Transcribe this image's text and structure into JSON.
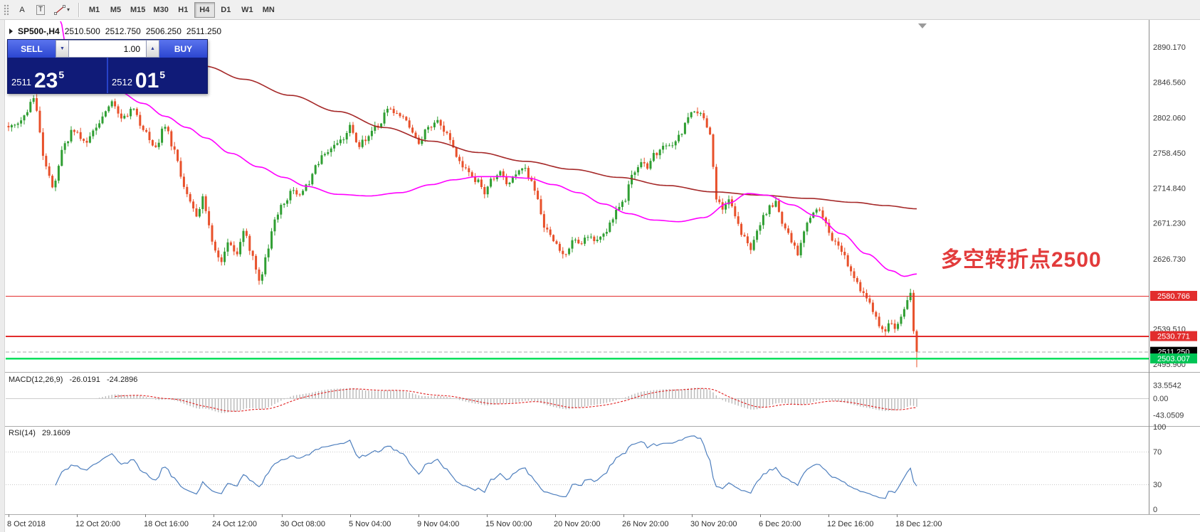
{
  "toolbar": {
    "tools": [
      {
        "name": "cursor-tool",
        "label": "A"
      },
      {
        "name": "text-tool",
        "label": "T"
      }
    ],
    "shapes_caret": "▾",
    "timeframes": [
      "M1",
      "M5",
      "M15",
      "M30",
      "H1",
      "H4",
      "D1",
      "W1",
      "MN"
    ],
    "active_timeframe": "H4"
  },
  "chart": {
    "symbol_title": "SP500-,H4",
    "ohlc": {
      "open": "2510.500",
      "high": "2512.750",
      "low": "2506.250",
      "close": "2511.250"
    },
    "annotation": {
      "text": "多空转折点2500",
      "color": "#e23b3b"
    }
  },
  "trade_panel": {
    "sell_label": "SELL",
    "buy_label": "BUY",
    "volume": "1.00",
    "volume_down_icon": "▼",
    "volume_up_icon": "▲",
    "sell_price": {
      "big_figure": "2511",
      "pips": "23",
      "pipette": "5"
    },
    "buy_price": {
      "big_figure": "2512",
      "pips": "01",
      "pipette": "5"
    }
  },
  "price_axis": {
    "labels": [
      {
        "text": "2890.170",
        "price": 2890.17
      },
      {
        "text": "2846.560",
        "price": 2846.56
      },
      {
        "text": "2802.060",
        "price": 2802.06
      },
      {
        "text": "2758.450",
        "price": 2758.45
      },
      {
        "text": "2714.840",
        "price": 2714.84
      },
      {
        "text": "2671.230",
        "price": 2671.23
      },
      {
        "text": "2626.730",
        "price": 2626.73
      },
      {
        "text": "2539.510",
        "price": 2539.51
      },
      {
        "text": "2495.900",
        "price": 2495.9
      }
    ],
    "badges": [
      {
        "text": "2580.766",
        "price": 2580.766,
        "bg": "#e22d2d",
        "fg": "#ffffff",
        "role": "resistance-line"
      },
      {
        "text": "2530.771",
        "price": 2530.771,
        "bg": "#e22d2d",
        "fg": "#ffffff",
        "role": "resistance-line"
      },
      {
        "text": "2511.250",
        "price": 2511.25,
        "bg": "#000000",
        "fg": "#ffffff",
        "role": "current-price"
      },
      {
        "text": "2503.007",
        "price": 2503.007,
        "bg": "#00c455",
        "fg": "#ffffff",
        "role": "support-line"
      }
    ]
  },
  "macd": {
    "title": "MACD(12,26,9)",
    "value_main": "-26.0191",
    "value_signal": "-24.2896",
    "axis": [
      {
        "text": "33.5542",
        "value": 33.5542
      },
      {
        "text": "0.00",
        "value": 0
      },
      {
        "text": "-43.0509",
        "value": -43.0509
      }
    ],
    "fast": 12,
    "slow": 26,
    "signal": 9,
    "histogram_color": "#b9b9b9",
    "signal_color": "#e02020"
  },
  "rsi": {
    "title": "RSI(14)",
    "value": "29.1609",
    "period": 14,
    "axis": [
      {
        "text": "100",
        "value": 100
      },
      {
        "text": "70",
        "value": 70
      },
      {
        "text": "30",
        "value": 30
      },
      {
        "text": "0",
        "value": 0
      }
    ],
    "levels": [
      70,
      30
    ],
    "line_color": "#4e7fbe"
  },
  "time_axis": {
    "labels": [
      "8 Oct 2018",
      "12 Oct 20:00",
      "18 Oct 16:00",
      "24 Oct 12:00",
      "30 Oct 08:00",
      "5 Nov 04:00",
      "9 Nov 04:00",
      "15 Nov 00:00",
      "20 Nov 20:00",
      "26 Nov 20:00",
      "30 Nov 20:00",
      "6 Dec 20:00",
      "12 Dec 16:00",
      "18 Dec 12:00"
    ]
  },
  "chart_data": {
    "type": "candlestick",
    "symbol": "SP500-",
    "timeframe": "H4",
    "bars": 291,
    "visible_price_range": [
      2486,
      2921
    ],
    "up_color": "#2f9e32",
    "down_color": "#e8502a",
    "last_close": 2511.25,
    "price_waypoints": [
      [
        0,
        2788
      ],
      [
        4,
        2800
      ],
      [
        8,
        2825
      ],
      [
        12,
        2745
      ],
      [
        14,
        2716
      ],
      [
        18,
        2770
      ],
      [
        21,
        2788
      ],
      [
        24,
        2772
      ],
      [
        28,
        2790
      ],
      [
        31,
        2812
      ],
      [
        33,
        2822
      ],
      [
        36,
        2800
      ],
      [
        40,
        2815
      ],
      [
        43,
        2785
      ],
      [
        47,
        2768
      ],
      [
        50,
        2792
      ],
      [
        53,
        2762
      ],
      [
        56,
        2715
      ],
      [
        58,
        2700
      ],
      [
        60,
        2678
      ],
      [
        62,
        2706
      ],
      [
        63,
        2688
      ],
      [
        65,
        2645
      ],
      [
        68,
        2620
      ],
      [
        70,
        2650
      ],
      [
        73,
        2634
      ],
      [
        75,
        2660
      ],
      [
        78,
        2630
      ],
      [
        80,
        2598
      ],
      [
        83,
        2640
      ],
      [
        85,
        2676
      ],
      [
        88,
        2698
      ],
      [
        91,
        2714
      ],
      [
        93,
        2704
      ],
      [
        96,
        2722
      ],
      [
        98,
        2742
      ],
      [
        101,
        2756
      ],
      [
        104,
        2768
      ],
      [
        107,
        2778
      ],
      [
        109,
        2790
      ],
      [
        112,
        2768
      ],
      [
        114,
        2776
      ],
      [
        118,
        2792
      ],
      [
        121,
        2812
      ],
      [
        124,
        2809
      ],
      [
        126,
        2800
      ],
      [
        129,
        2782
      ],
      [
        131,
        2772
      ],
      [
        134,
        2790
      ],
      [
        137,
        2796
      ],
      [
        140,
        2780
      ],
      [
        142,
        2762
      ],
      [
        145,
        2742
      ],
      [
        147,
        2732
      ],
      [
        150,
        2722
      ],
      [
        152,
        2706
      ],
      [
        154,
        2726
      ],
      [
        157,
        2736
      ],
      [
        159,
        2720
      ],
      [
        162,
        2730
      ],
      [
        164,
        2742
      ],
      [
        167,
        2722
      ],
      [
        169,
        2700
      ],
      [
        171,
        2665
      ],
      [
        174,
        2652
      ],
      [
        176,
        2640
      ],
      [
        178,
        2630
      ],
      [
        180,
        2652
      ],
      [
        182,
        2644
      ],
      [
        185,
        2656
      ],
      [
        187,
        2646
      ],
      [
        190,
        2656
      ],
      [
        192,
        2670
      ],
      [
        195,
        2690
      ],
      [
        197,
        2702
      ],
      [
        199,
        2730
      ],
      [
        202,
        2746
      ],
      [
        204,
        2740
      ],
      [
        206,
        2760
      ],
      [
        207,
        2754
      ],
      [
        209,
        2770
      ],
      [
        212,
        2766
      ],
      [
        214,
        2780
      ],
      [
        217,
        2800
      ],
      [
        219,
        2812
      ],
      [
        221,
        2806
      ],
      [
        223,
        2790
      ],
      [
        224,
        2782
      ],
      [
        226,
        2700
      ],
      [
        228,
        2690
      ],
      [
        230,
        2702
      ],
      [
        232,
        2678
      ],
      [
        234,
        2658
      ],
      [
        237,
        2640
      ],
      [
        239,
        2660
      ],
      [
        241,
        2680
      ],
      [
        243,
        2690
      ],
      [
        245,
        2698
      ],
      [
        246,
        2684
      ],
      [
        248,
        2662
      ],
      [
        250,
        2650
      ],
      [
        252,
        2630
      ],
      [
        254,
        2660
      ],
      [
        256,
        2680
      ],
      [
        258,
        2690
      ],
      [
        259,
        2685
      ],
      [
        261,
        2670
      ],
      [
        263,
        2650
      ],
      [
        265,
        2640
      ],
      [
        267,
        2630
      ],
      [
        268,
        2620
      ],
      [
        270,
        2600
      ],
      [
        272,
        2590
      ],
      [
        274,
        2580
      ],
      [
        276,
        2560
      ],
      [
        278,
        2545
      ],
      [
        280,
        2540
      ],
      [
        281,
        2546
      ],
      [
        283,
        2540
      ],
      [
        285,
        2556
      ],
      [
        286,
        2566
      ],
      [
        288,
        2583
      ],
      [
        289,
        2538
      ],
      [
        290,
        2511.25
      ]
    ],
    "ma_fast": {
      "color": "#ff00ff",
      "waypoints": [
        [
          16,
          2928
        ],
        [
          20,
          2860
        ],
        [
          27,
          2845
        ],
        [
          35,
          2835
        ],
        [
          43,
          2820
        ],
        [
          50,
          2804
        ],
        [
          57,
          2790
        ],
        [
          63,
          2777
        ],
        [
          71,
          2758
        ],
        [
          80,
          2741
        ],
        [
          88,
          2728
        ],
        [
          95,
          2717
        ],
        [
          105,
          2707
        ],
        [
          115,
          2705
        ],
        [
          125,
          2709
        ],
        [
          135,
          2719
        ],
        [
          142,
          2725
        ],
        [
          150,
          2729
        ],
        [
          158,
          2729
        ],
        [
          166,
          2727
        ],
        [
          174,
          2719
        ],
        [
          182,
          2709
        ],
        [
          190,
          2695
        ],
        [
          198,
          2683
        ],
        [
          206,
          2675
        ],
        [
          214,
          2673
        ],
        [
          222,
          2678
        ],
        [
          230,
          2696
        ],
        [
          236,
          2708
        ],
        [
          242,
          2706
        ],
        [
          250,
          2694
        ],
        [
          258,
          2680
        ],
        [
          266,
          2658
        ],
        [
          274,
          2633
        ],
        [
          282,
          2612
        ],
        [
          286,
          2605
        ],
        [
          290,
          2608
        ]
      ]
    },
    "ma_slow": {
      "color": "#a52828",
      "waypoints": [
        [
          63,
          2866
        ],
        [
          75,
          2850
        ],
        [
          90,
          2830
        ],
        [
          105,
          2810
        ],
        [
          120,
          2790
        ],
        [
          135,
          2773
        ],
        [
          150,
          2759
        ],
        [
          165,
          2748
        ],
        [
          180,
          2738
        ],
        [
          195,
          2728
        ],
        [
          210,
          2718
        ],
        [
          225,
          2710
        ],
        [
          240,
          2706
        ],
        [
          255,
          2702
        ],
        [
          270,
          2697
        ],
        [
          280,
          2693
        ],
        [
          290,
          2689
        ]
      ]
    },
    "hlines": [
      {
        "price": 2580.766,
        "color": "#e22d2d",
        "width": 1.4,
        "role": "resistance"
      },
      {
        "price": 2530.771,
        "color": "#e22d2d",
        "width": 1.8,
        "role": "resistance"
      },
      {
        "price": 2511.25,
        "color": "#a8a8a8",
        "width": 1,
        "dash": "5 3",
        "role": "bid-line"
      },
      {
        "price": 2503.007,
        "color": "#00e05c",
        "width": 2.5,
        "role": "support"
      }
    ]
  }
}
